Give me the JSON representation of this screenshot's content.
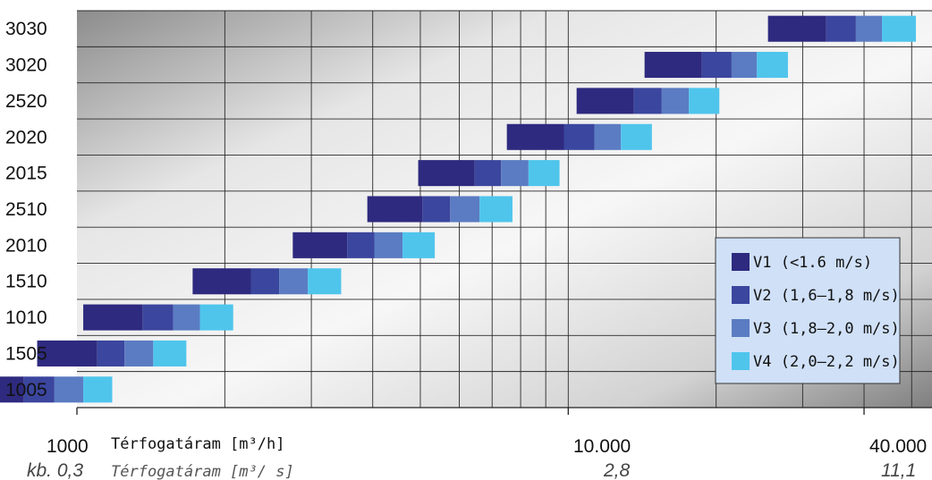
{
  "chart_data": {
    "type": "bar",
    "orientation": "horizontal",
    "x_scale": "log",
    "xlim": [
      1000,
      55000
    ],
    "grid": true,
    "legend_position": "bottom-right",
    "categories": [
      "3030",
      "3020",
      "2520",
      "2020",
      "2015",
      "2510",
      "2010",
      "1510",
      "1010",
      "1505",
      "1005"
    ],
    "series": [
      {
        "name": "V1 (<1.6 m/s)",
        "color": "#2e2a7f",
        "start": [
          25500,
          14300,
          10400,
          7500,
          4950,
          3900,
          2750,
          1720,
          1030,
          830,
          590
        ],
        "end": [
          33500,
          18700,
          13600,
          9800,
          6450,
          5050,
          3550,
          2260,
          1360,
          1100,
          780
        ]
      },
      {
        "name": "V2 (1,6–1,8 m/s)",
        "color": "#3b469e",
        "start": [
          33500,
          18700,
          13600,
          9800,
          6450,
          5050,
          3550,
          2260,
          1360,
          1100,
          780
        ]
      },
      {
        "name": "V3 (1,8–2,0 m/s)",
        "color": "#5b7cc2",
        "start": [
          38500,
          21500,
          15500,
          11300,
          7300,
          5750,
          4030,
          2580,
          1570,
          1250,
          900
        ]
      },
      {
        "name": "V4 (2,0–2,2 m/s)",
        "color": "#4fc5ec",
        "start": [
          43500,
          24200,
          17600,
          12800,
          8300,
          6600,
          4600,
          2950,
          1780,
          1430,
          1030
        ],
        "end": [
          51000,
          28000,
          20300,
          14800,
          9600,
          7700,
          5350,
          3450,
          2080,
          1670,
          1180
        ]
      }
    ],
    "x_tick_labels": [
      {
        "value": 1000,
        "label": "1000",
        "label2": "kb. 0,3"
      },
      {
        "value": 10000,
        "label": "10.000",
        "label2": "2,8"
      },
      {
        "value": 40000,
        "label": "40.000",
        "label2": "11,1"
      }
    ],
    "xlabel": "Térfogatáram [m³/h]",
    "xlabel2": "Térfogatáram [m³/ s]"
  }
}
